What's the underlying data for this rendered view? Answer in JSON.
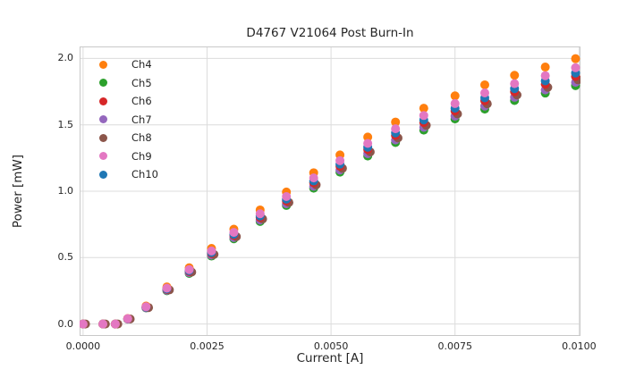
{
  "chart_data": {
    "type": "scatter",
    "title": "D4767 V21064 Post Burn-In",
    "xlabel": "Current [A]",
    "ylabel": "Power [mW]",
    "xlim": [
      -7e-05,
      0.01003
    ],
    "ylim": [
      -0.09,
      2.09
    ],
    "x_ticks": {
      "values": [
        0.0,
        0.0025,
        0.005,
        0.0075,
        0.01
      ],
      "labels": [
        "0.0000",
        "0.0025",
        "0.0050",
        "0.0075",
        "0.0100"
      ]
    },
    "y_ticks": {
      "values": [
        0.0,
        0.5,
        1.0,
        1.5,
        2.0
      ],
      "labels": [
        "0.0",
        "0.5",
        "1.0",
        "1.5",
        "2.0"
      ]
    },
    "grid": true,
    "legend_position": "upper-left",
    "marker_size_px": 10,
    "x": [
      0.0,
      0.0004,
      0.00065,
      0.0009,
      0.00127,
      0.00169,
      0.00214,
      0.00259,
      0.00304,
      0.00357,
      0.0041,
      0.00465,
      0.00518,
      0.00574,
      0.0063,
      0.00687,
      0.0075,
      0.0081,
      0.0087,
      0.00932,
      0.00993
    ],
    "series": [
      {
        "name": "Ch4",
        "color": "#ff7f0e",
        "z": 6,
        "values": [
          0,
          0,
          0,
          0.041,
          0.135,
          0.279,
          0.424,
          0.569,
          0.714,
          0.859,
          0.994,
          1.139,
          1.273,
          1.408,
          1.521,
          1.625,
          1.718,
          1.801,
          1.873,
          1.935,
          1.998
        ]
      },
      {
        "name": "Ch5",
        "color": "#2ca02c",
        "z": 1,
        "values": [
          0,
          0,
          0,
          0.037,
          0.121,
          0.251,
          0.381,
          0.512,
          0.642,
          0.772,
          0.893,
          1.023,
          1.144,
          1.265,
          1.367,
          1.46,
          1.544,
          1.618,
          1.683,
          1.739,
          1.795
        ]
      },
      {
        "name": "Ch6",
        "color": "#d62728",
        "z": 4,
        "values": [
          0,
          0,
          0,
          0.039,
          0.126,
          0.261,
          0.396,
          0.531,
          0.667,
          0.802,
          0.927,
          1.063,
          1.188,
          1.314,
          1.42,
          1.517,
          1.604,
          1.681,
          1.749,
          1.806,
          1.864
        ]
      },
      {
        "name": "Ch7",
        "color": "#9467bd",
        "z": 2,
        "values": [
          0,
          0,
          0,
          0.038,
          0.123,
          0.255,
          0.387,
          0.519,
          0.651,
          0.783,
          0.905,
          1.037,
          1.16,
          1.283,
          1.386,
          1.481,
          1.565,
          1.641,
          1.707,
          1.763,
          1.82
        ]
      },
      {
        "name": "Ch8",
        "color": "#8c564b",
        "z": 3,
        "x_offset": 5e-05,
        "values": [
          0,
          0,
          0,
          0.038,
          0.124,
          0.257,
          0.391,
          0.524,
          0.658,
          0.791,
          0.915,
          1.048,
          1.172,
          1.296,
          1.401,
          1.496,
          1.582,
          1.658,
          1.725,
          1.782,
          1.839
        ]
      },
      {
        "name": "Ch9",
        "color": "#e377c2",
        "z": 7,
        "values": [
          0,
          0,
          0,
          0.04,
          0.13,
          0.27,
          0.41,
          0.55,
          0.69,
          0.83,
          0.96,
          1.1,
          1.23,
          1.36,
          1.47,
          1.57,
          1.66,
          1.74,
          1.81,
          1.87,
          1.93
        ]
      },
      {
        "name": "Ch10",
        "color": "#1f77b4",
        "z": 5,
        "values": [
          0,
          0,
          0,
          0.039,
          0.127,
          0.264,
          0.401,
          0.538,
          0.675,
          0.813,
          0.94,
          1.077,
          1.204,
          1.331,
          1.439,
          1.537,
          1.625,
          1.703,
          1.772,
          1.831,
          1.89
        ]
      }
    ],
    "theme": {
      "background": "#ffffff",
      "grid_color": "#dcdcdc",
      "spine_color": "#c9c9c9",
      "text_color": "#262626"
    }
  }
}
